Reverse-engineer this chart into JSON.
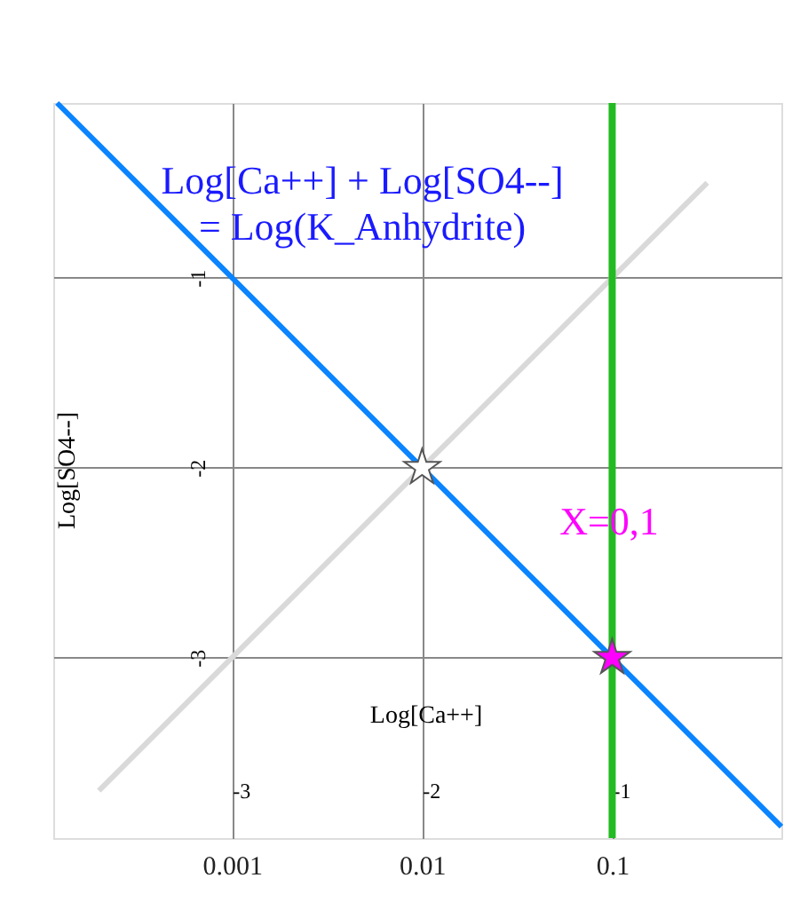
{
  "chart_data": {
    "type": "line",
    "xlabel": "Log[Ca++]",
    "ylabel": "Log[SO4--]",
    "xlim": [
      -3.94,
      -0.11
    ],
    "ylim": [
      -3.95,
      -0.08
    ],
    "xticks": [
      -3,
      -2,
      -1
    ],
    "yticks": [
      -3,
      -2,
      -1
    ],
    "x2lim": [
      0.000115,
      0.776
    ],
    "x2ticks": [
      0.001,
      0.01,
      0.1
    ],
    "log": "x2",
    "grid": true,
    "line_style": "solid",
    "series": [
      {
        "color": "#d9d9d9",
        "x": [
          -3.7,
          -0.5
        ],
        "values": [
          -3.7,
          -0.5
        ]
      },
      {
        "color": "#0a84ff",
        "x": [
          -3.92,
          -0.11
        ],
        "values": [
          -0.08,
          -3.89
        ]
      },
      {
        "type": "scatter",
        "marker": "star",
        "color": "#ffffff",
        "x": [
          -2
        ],
        "values": [
          -2
        ]
      },
      {
        "type": "scatter",
        "marker": "star",
        "color": "#ff00ff",
        "x": [
          -1
        ],
        "values": [
          -3
        ]
      }
    ],
    "ref_lines": [
      {
        "axis": "x",
        "value": -1,
        "color": "#22bb22"
      }
    ],
    "annotations": [
      "Log[Ca++] + Log[SO4--]\n= Log(K_Anhydrite)",
      "X=0,1"
    ]
  }
}
